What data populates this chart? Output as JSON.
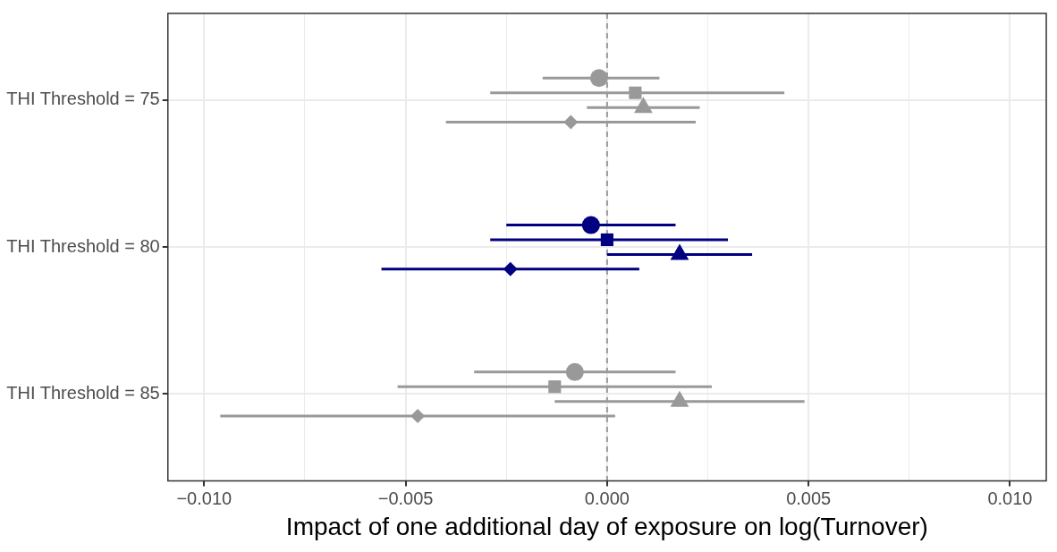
{
  "chart_data": {
    "type": "scatter",
    "orientation": "horizontal",
    "xlabel": "Impact of one additional day of exposure on log(Turnover)",
    "categories": [
      "THI Threshold = 75",
      "THI Threshold = 80",
      "THI Threshold = 85"
    ],
    "xlim": [
      -0.0109,
      0.0109
    ],
    "xticks": [
      {
        "value": -0.01,
        "label": "−0.010"
      },
      {
        "value": -0.0075,
        "label": null
      },
      {
        "value": -0.005,
        "label": "−0.005"
      },
      {
        "value": -0.0025,
        "label": null
      },
      {
        "value": 0.0,
        "label": "0.000"
      },
      {
        "value": 0.0025,
        "label": null
      },
      {
        "value": 0.005,
        "label": "0.005"
      },
      {
        "value": 0.0075,
        "label": null
      },
      {
        "value": 0.01,
        "label": "0.010"
      }
    ],
    "grid": true,
    "legend": false,
    "ref_lines": [
      {
        "axis": "x",
        "value": 0,
        "color": "#999999",
        "line_style": "dashed"
      }
    ],
    "series": [
      {
        "marker": "circle",
        "colors": [
          "#999999",
          "#000080",
          "#999999"
        ],
        "values": [
          -0.0002,
          -0.0004,
          -0.0008
        ],
        "errors": [
          [
            -0.0016,
            0.0013
          ],
          [
            -0.0025,
            0.0017
          ],
          [
            -0.0033,
            0.0017
          ]
        ]
      },
      {
        "marker": "square",
        "colors": [
          "#999999",
          "#000080",
          "#999999"
        ],
        "values": [
          0.0007,
          0.0,
          -0.0013
        ],
        "errors": [
          [
            -0.0029,
            0.0044
          ],
          [
            -0.0029,
            0.003
          ],
          [
            -0.0052,
            0.0026
          ]
        ]
      },
      {
        "marker": "triangle",
        "colors": [
          "#999999",
          "#000080",
          "#999999"
        ],
        "values": [
          0.0009,
          0.0018,
          0.0018
        ],
        "errors": [
          [
            -0.0005,
            0.0023
          ],
          [
            0.0,
            0.0036
          ],
          [
            -0.0013,
            0.0049
          ]
        ]
      },
      {
        "marker": "diamond",
        "colors": [
          "#999999",
          "#000080",
          "#999999"
        ],
        "values": [
          -0.0009,
          -0.0024,
          -0.0047
        ],
        "errors": [
          [
            -0.004,
            0.0022
          ],
          [
            -0.0056,
            0.0008
          ],
          [
            -0.0096,
            0.0002
          ]
        ]
      }
    ]
  }
}
